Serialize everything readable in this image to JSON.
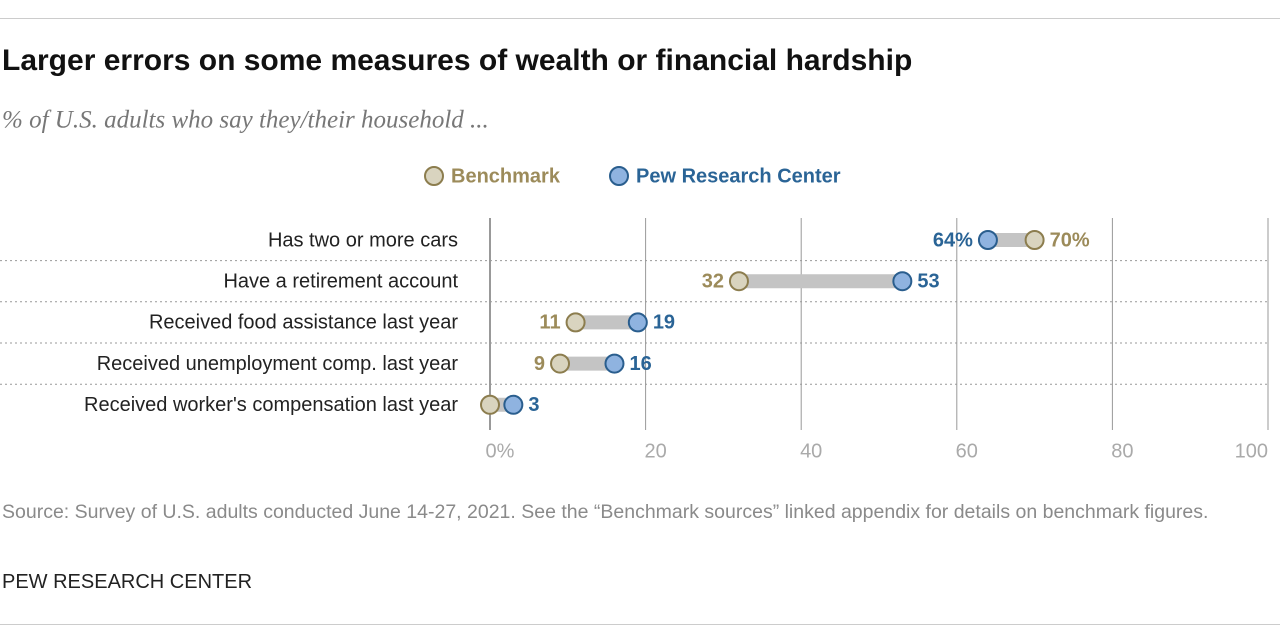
{
  "chart_data": {
    "type": "dot",
    "title": "Larger errors on some measures of wealth or financial hardship",
    "subtitle": "% of U.S. adults who say they/their household ...",
    "categories": [
      "Has two or more cars",
      "Have a retirement account",
      "Received food assistance last year",
      "Received unemployment comp. last year",
      "Received worker's compensation last year"
    ],
    "series": [
      {
        "name": "Benchmark",
        "color": "#d9d4bf",
        "stroke": "#8c7d4e",
        "label_color": "#9c8b5a",
        "values": [
          70,
          32,
          11,
          9,
          0
        ],
        "value_labels": [
          "70%",
          "32",
          "11",
          "9",
          null
        ]
      },
      {
        "name": "Pew Research Center",
        "color": "#8fb3e0",
        "stroke": "#2a5e8e",
        "label_color": "#2a6496",
        "values": [
          64,
          53,
          19,
          16,
          3
        ],
        "value_labels": [
          "64%",
          "53",
          "19",
          "16",
          "3"
        ]
      }
    ],
    "xlim": [
      0,
      100
    ],
    "xticks": [
      {
        "value": 0,
        "label": "0%"
      },
      20,
      40,
      60,
      80,
      100
    ],
    "grid": true,
    "source": "Source: Survey of U.S. adults conducted June 14-27, 2021. See the “Benchmark sources” linked appendix for details on benchmark figures.",
    "brand": "PEW RESEARCH CENTER"
  }
}
